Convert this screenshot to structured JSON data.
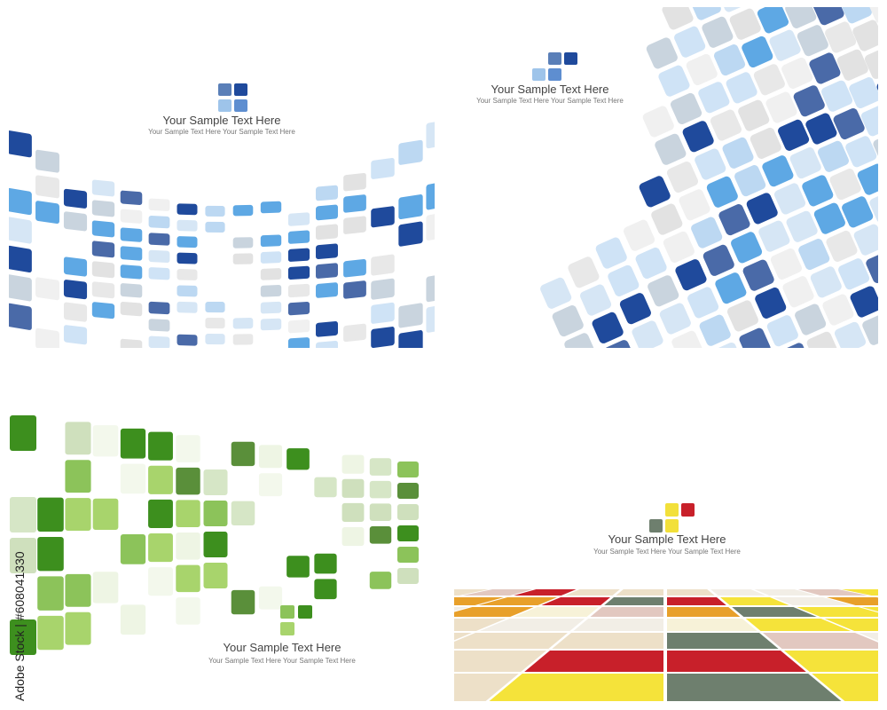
{
  "panels": [
    {
      "title": "Your Sample Text Here",
      "subtitle": "Your Sample Text Here Your Sample Text Here"
    },
    {
      "title": "Your Sample Text Here",
      "subtitle": "Your Sample Text Here Your Sample Text Here"
    },
    {
      "title": "Your Sample Text Here",
      "subtitle": "Your Sample Text Here Your Sample Text Here"
    },
    {
      "title": "Your Sample Text Here",
      "subtitle": "Your Sample Text Here Your Sample Text Here"
    }
  ],
  "watermark": "Adobe Stock | #608041330"
}
